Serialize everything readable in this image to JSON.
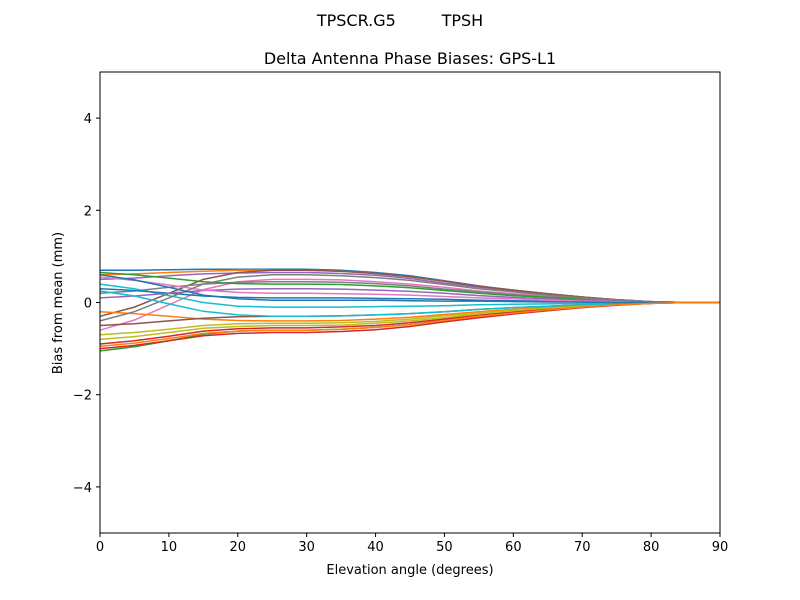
{
  "chart_data": {
    "type": "line",
    "suptitle": "TPSCR.G5         TPSH",
    "title": "Delta Antenna Phase Biases: GPS-L1",
    "xlabel": "Elevation angle (degrees)",
    "ylabel": "Bias from mean (mm)",
    "xlim": [
      0,
      90
    ],
    "ylim": [
      -5,
      5
    ],
    "xticks": [
      0,
      10,
      20,
      30,
      40,
      50,
      60,
      70,
      80,
      90
    ],
    "yticks": [
      -4,
      -2,
      0,
      2,
      4
    ],
    "ytick_labels": [
      "−4",
      "−2",
      "0",
      "2",
      "4"
    ],
    "grid": false,
    "colors": [
      "#1f77b4",
      "#ff7f0e",
      "#2ca02c",
      "#d62728",
      "#9467bd",
      "#8c564b",
      "#e377c2",
      "#7f7f7f",
      "#bcbd22",
      "#17becf"
    ],
    "x": [
      0,
      5,
      10,
      15,
      20,
      25,
      30,
      35,
      40,
      45,
      50,
      55,
      60,
      65,
      70,
      75,
      80,
      85,
      90
    ],
    "series": [
      {
        "values": [
          0.7,
          0.7,
          0.71,
          0.72,
          0.72,
          0.72,
          0.72,
          0.7,
          0.65,
          0.58,
          0.47,
          0.36,
          0.27,
          0.19,
          0.12,
          0.06,
          0.02,
          0,
          0
        ]
      },
      {
        "values": [
          0.6,
          0.62,
          0.65,
          0.68,
          0.7,
          0.7,
          0.7,
          0.68,
          0.63,
          0.56,
          0.46,
          0.35,
          0.27,
          0.19,
          0.12,
          0.06,
          0.02,
          0,
          0
        ]
      },
      {
        "values": [
          -1.05,
          -0.96,
          -0.83,
          -0.69,
          -0.62,
          -0.6,
          -0.6,
          -0.58,
          -0.54,
          -0.48,
          -0.39,
          -0.3,
          -0.23,
          -0.16,
          -0.1,
          -0.05,
          -0.02,
          0,
          0
        ]
      },
      {
        "values": [
          -1.0,
          -0.93,
          -0.83,
          -0.72,
          -0.67,
          -0.65,
          -0.65,
          -0.63,
          -0.59,
          -0.52,
          -0.42,
          -0.33,
          -0.25,
          -0.18,
          -0.11,
          -0.06,
          -0.02,
          0,
          0
        ]
      },
      {
        "values": [
          0.5,
          0.53,
          0.58,
          0.62,
          0.64,
          0.65,
          0.65,
          0.63,
          0.59,
          0.52,
          0.42,
          0.33,
          0.25,
          0.18,
          0.11,
          0.06,
          0.02,
          0,
          0
        ]
      },
      {
        "values": [
          -0.3,
          -0.1,
          0.2,
          0.5,
          0.65,
          0.7,
          0.7,
          0.68,
          0.63,
          0.56,
          0.46,
          0.35,
          0.27,
          0.19,
          0.12,
          0.06,
          0.02,
          0,
          0
        ]
      },
      {
        "values": [
          -0.6,
          -0.38,
          -0.05,
          0.28,
          0.45,
          0.5,
          0.5,
          0.49,
          0.45,
          0.4,
          0.33,
          0.25,
          0.19,
          0.14,
          0.09,
          0.05,
          0.02,
          0,
          0
        ]
      },
      {
        "values": [
          0.2,
          0.25,
          0.33,
          0.4,
          0.44,
          0.45,
          0.45,
          0.44,
          0.41,
          0.36,
          0.29,
          0.23,
          0.17,
          0.12,
          0.08,
          0.04,
          0.01,
          0,
          0
        ]
      },
      {
        "values": [
          -0.8,
          -0.74,
          -0.65,
          -0.56,
          -0.52,
          -0.5,
          -0.5,
          -0.49,
          -0.45,
          -0.4,
          -0.33,
          -0.25,
          -0.19,
          -0.14,
          -0.09,
          -0.05,
          -0.02,
          0,
          0
        ]
      },
      {
        "values": [
          0.4,
          0.3,
          0.15,
          0.0,
          -0.08,
          -0.1,
          -0.1,
          -0.1,
          -0.09,
          -0.08,
          -0.07,
          -0.05,
          -0.04,
          -0.03,
          -0.02,
          -0.01,
          0,
          0,
          0
        ]
      },
      {
        "values": [
          0.3,
          0.26,
          0.2,
          0.14,
          0.11,
          0.1,
          0.1,
          0.1,
          0.09,
          0.08,
          0.07,
          0.05,
          0.04,
          0.03,
          0.02,
          0.01,
          0,
          0,
          0
        ]
      },
      {
        "values": [
          -0.2,
          -0.24,
          -0.3,
          -0.36,
          -0.39,
          -0.4,
          -0.4,
          -0.39,
          -0.36,
          -0.32,
          -0.26,
          -0.2,
          -0.15,
          -0.11,
          -0.07,
          -0.04,
          -0.01,
          0,
          0
        ]
      },
      {
        "values": [
          0.65,
          0.6,
          0.53,
          0.45,
          0.41,
          0.4,
          0.4,
          0.39,
          0.36,
          0.32,
          0.26,
          0.2,
          0.15,
          0.11,
          0.07,
          0.04,
          0.01,
          0,
          0
        ]
      },
      {
        "values": [
          -0.9,
          -0.83,
          -0.73,
          -0.62,
          -0.57,
          -0.55,
          -0.55,
          -0.53,
          -0.5,
          -0.44,
          -0.36,
          -0.28,
          -0.21,
          -0.15,
          -0.09,
          -0.05,
          -0.02,
          0,
          0
        ]
      },
      {
        "values": [
          0.1,
          0.14,
          0.2,
          0.26,
          0.29,
          0.3,
          0.3,
          0.29,
          0.27,
          0.24,
          0.2,
          0.15,
          0.11,
          0.08,
          0.05,
          0.03,
          0.01,
          0,
          0
        ]
      },
      {
        "values": [
          -0.5,
          -0.46,
          -0.4,
          -0.34,
          -0.31,
          -0.3,
          -0.3,
          -0.29,
          -0.27,
          -0.24,
          -0.2,
          -0.15,
          -0.11,
          -0.08,
          -0.05,
          -0.03,
          -0.01,
          0,
          0
        ]
      },
      {
        "values": [
          0.55,
          0.48,
          0.38,
          0.27,
          0.22,
          0.2,
          0.2,
          0.19,
          0.18,
          0.16,
          0.13,
          0.1,
          0.08,
          0.05,
          0.03,
          0.02,
          0.01,
          0,
          0
        ]
      },
      {
        "values": [
          -0.4,
          -0.2,
          0.1,
          0.4,
          0.55,
          0.6,
          0.6,
          0.58,
          0.54,
          0.48,
          0.39,
          0.3,
          0.23,
          0.16,
          0.1,
          0.05,
          0.02,
          0,
          0
        ]
      },
      {
        "values": [
          -0.7,
          -0.65,
          -0.58,
          -0.5,
          -0.46,
          -0.45,
          -0.45,
          -0.44,
          -0.41,
          -0.36,
          -0.29,
          -0.23,
          -0.17,
          -0.12,
          -0.08,
          -0.04,
          -0.01,
          0,
          0
        ]
      },
      {
        "values": [
          0.25,
          0.14,
          -0.03,
          -0.19,
          -0.27,
          -0.3,
          -0.3,
          -0.29,
          -0.27,
          -0.24,
          -0.2,
          -0.15,
          -0.11,
          -0.08,
          -0.05,
          -0.03,
          -0.01,
          0,
          0
        ]
      },
      {
        "values": [
          0.6,
          0.49,
          0.33,
          0.16,
          0.08,
          0.05,
          0.05,
          0.05,
          0.05,
          0.04,
          0.03,
          0.03,
          0.02,
          0.01,
          0.01,
          0,
          0,
          0,
          0
        ]
      },
      {
        "values": [
          -0.95,
          -0.88,
          -0.78,
          -0.67,
          -0.62,
          -0.6,
          -0.6,
          -0.58,
          -0.54,
          -0.48,
          -0.39,
          -0.3,
          -0.23,
          -0.16,
          -0.1,
          -0.05,
          -0.02,
          0,
          0
        ]
      }
    ]
  }
}
